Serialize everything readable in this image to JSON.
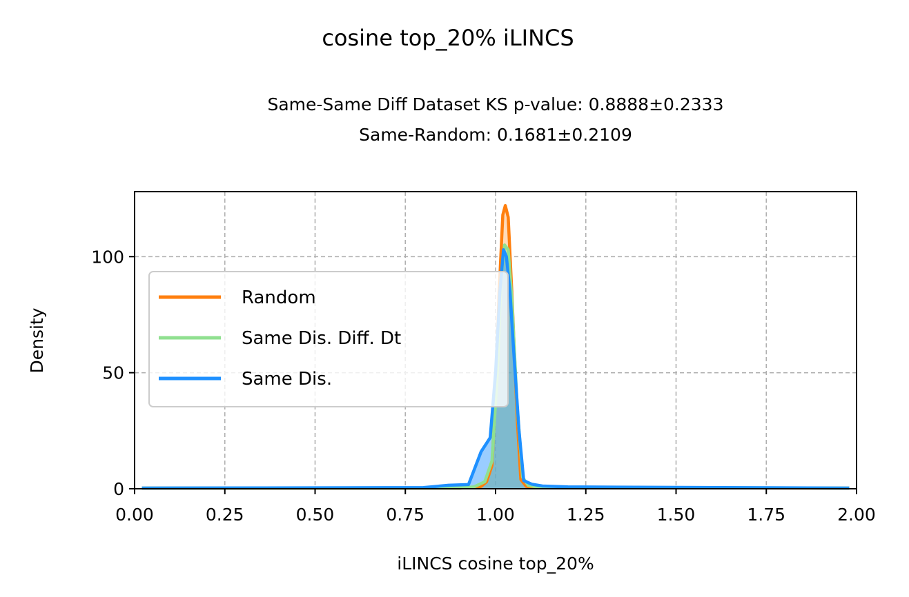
{
  "chart_data": {
    "type": "area",
    "title": "cosine top_20% iLINCS",
    "subtitle_line1": "Same-Same Diff Dataset  KS p-value: 0.8888±0.2333",
    "subtitle_line2": "Same-Random: 0.1681±0.2109",
    "xlabel": "iLINCS cosine top_20%",
    "ylabel": "Density",
    "xlim": [
      0,
      2
    ],
    "ylim": [
      0,
      128
    ],
    "xticks": [
      0,
      0.25,
      0.5,
      0.75,
      1.0,
      1.25,
      1.5,
      1.75,
      2.0
    ],
    "xtick_labels": [
      "0.00",
      "0.25",
      "0.50",
      "0.75",
      "1.00",
      "1.25",
      "1.50",
      "1.75",
      "2.00"
    ],
    "yticks": [
      0,
      50,
      100
    ],
    "ytick_labels": [
      "0",
      "50",
      "100"
    ],
    "grid": true,
    "legend_position": "center-left",
    "series": [
      {
        "name": "Random",
        "color": "#ff7f0e",
        "fill": "#ffb066",
        "points": [
          [
            0.02,
            0.3
          ],
          [
            0.9,
            0.3
          ],
          [
            0.93,
            0.5
          ],
          [
            0.96,
            1
          ],
          [
            0.975,
            3
          ],
          [
            0.99,
            10
          ],
          [
            1.0,
            40
          ],
          [
            1.01,
            85
          ],
          [
            1.02,
            118
          ],
          [
            1.027,
            122
          ],
          [
            1.035,
            117
          ],
          [
            1.045,
            85
          ],
          [
            1.06,
            30
          ],
          [
            1.07,
            4
          ],
          [
            1.085,
            1
          ],
          [
            1.1,
            0.5
          ],
          [
            1.98,
            0.3
          ]
        ]
      },
      {
        "name": "Same Dis. Diff. Dt",
        "color": "#90e090",
        "fill": "#90e090",
        "points": [
          [
            0.02,
            0.3
          ],
          [
            0.9,
            0.3
          ],
          [
            0.94,
            0.8
          ],
          [
            0.97,
            3
          ],
          [
            0.99,
            12
          ],
          [
            1.005,
            50
          ],
          [
            1.015,
            90
          ],
          [
            1.025,
            105
          ],
          [
            1.035,
            103
          ],
          [
            1.045,
            82
          ],
          [
            1.06,
            35
          ],
          [
            1.075,
            5
          ],
          [
            1.09,
            1.5
          ],
          [
            1.12,
            0.6
          ],
          [
            1.98,
            0.3
          ]
        ]
      },
      {
        "name": "Same Dis.",
        "color": "#1e90ff",
        "fill": "#1e90ff",
        "points": [
          [
            0.02,
            0.3
          ],
          [
            0.8,
            0.5
          ],
          [
            0.87,
            1.5
          ],
          [
            0.925,
            1.8
          ],
          [
            0.96,
            16
          ],
          [
            0.985,
            22
          ],
          [
            1.0,
            50
          ],
          [
            1.012,
            85
          ],
          [
            1.022,
            103
          ],
          [
            1.03,
            100
          ],
          [
            1.04,
            85
          ],
          [
            1.05,
            60
          ],
          [
            1.065,
            25
          ],
          [
            1.078,
            3.5
          ],
          [
            1.1,
            2
          ],
          [
            1.13,
            1.2
          ],
          [
            1.2,
            0.8
          ],
          [
            1.98,
            0.3
          ]
        ]
      }
    ]
  }
}
